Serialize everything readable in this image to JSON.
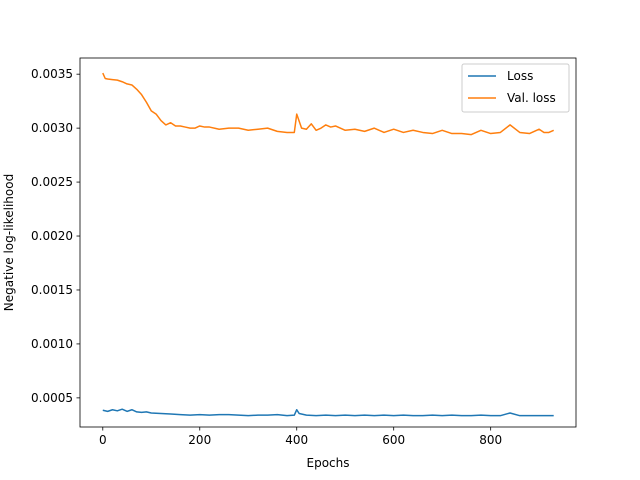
{
  "chart_data": {
    "type": "line",
    "title": "",
    "xlabel": "Epochs",
    "ylabel": "Negative log-likelihood",
    "xlim": [
      -47,
      976
    ],
    "ylim": [
      0.00023,
      0.00365
    ],
    "xticks": [
      0,
      200,
      400,
      600,
      800
    ],
    "xtick_labels": [
      "0",
      "200",
      "400",
      "600",
      "800"
    ],
    "yticks": [
      0.0005,
      0.001,
      0.0015,
      0.002,
      0.0025,
      0.003,
      0.0035
    ],
    "ytick_labels": [
      "0.0005",
      "0.0010",
      "0.0015",
      "0.0020",
      "0.0025",
      "0.0030",
      "0.0035"
    ],
    "grid": false,
    "legend_position": "top-right",
    "series": [
      {
        "name": "Loss",
        "color": "#1f77b4",
        "x": [
          0,
          10,
          20,
          30,
          40,
          50,
          60,
          70,
          80,
          90,
          100,
          120,
          140,
          160,
          180,
          200,
          220,
          240,
          260,
          280,
          300,
          320,
          340,
          360,
          380,
          395,
          400,
          405,
          420,
          440,
          460,
          480,
          500,
          520,
          540,
          560,
          580,
          600,
          620,
          640,
          660,
          680,
          700,
          720,
          740,
          760,
          780,
          800,
          820,
          840,
          860,
          880,
          900,
          920,
          930
        ],
        "y": [
          0.000385,
          0.000375,
          0.00039,
          0.00038,
          0.000395,
          0.000375,
          0.00039,
          0.00037,
          0.000365,
          0.00037,
          0.00036,
          0.000355,
          0.00035,
          0.000345,
          0.00034,
          0.000345,
          0.00034,
          0.000345,
          0.000345,
          0.00034,
          0.000335,
          0.00034,
          0.00034,
          0.000345,
          0.000335,
          0.00034,
          0.00039,
          0.000355,
          0.00034,
          0.000335,
          0.00034,
          0.000335,
          0.00034,
          0.000335,
          0.00034,
          0.000335,
          0.00034,
          0.000335,
          0.00034,
          0.000335,
          0.000335,
          0.00034,
          0.000335,
          0.00034,
          0.000335,
          0.000335,
          0.00034,
          0.000335,
          0.000335,
          0.00036,
          0.000335,
          0.000335,
          0.000335,
          0.000335,
          0.000335
        ]
      },
      {
        "name": "Val. loss",
        "color": "#ff7f0e",
        "x": [
          0,
          5,
          10,
          20,
          30,
          40,
          50,
          60,
          70,
          80,
          90,
          100,
          110,
          120,
          130,
          140,
          150,
          160,
          170,
          180,
          190,
          200,
          210,
          220,
          240,
          260,
          280,
          300,
          320,
          340,
          360,
          380,
          390,
          395,
          400,
          410,
          420,
          430,
          440,
          450,
          460,
          470,
          480,
          500,
          520,
          540,
          560,
          580,
          600,
          620,
          640,
          660,
          680,
          700,
          720,
          740,
          760,
          780,
          800,
          820,
          840,
          860,
          880,
          900,
          910,
          920,
          930
        ],
        "y": [
          0.00351,
          0.00346,
          0.003455,
          0.00345,
          0.003445,
          0.00343,
          0.00341,
          0.0034,
          0.00336,
          0.00331,
          0.00324,
          0.00316,
          0.00313,
          0.00307,
          0.00303,
          0.00305,
          0.00302,
          0.00302,
          0.00301,
          0.003,
          0.003,
          0.00302,
          0.00301,
          0.00301,
          0.00299,
          0.003,
          0.003,
          0.00298,
          0.00299,
          0.003,
          0.00297,
          0.00296,
          0.00296,
          0.00296,
          0.00313,
          0.003,
          0.00299,
          0.00304,
          0.00298,
          0.003,
          0.00303,
          0.00301,
          0.00302,
          0.00298,
          0.00299,
          0.00297,
          0.003,
          0.00296,
          0.00299,
          0.00296,
          0.00298,
          0.00296,
          0.00295,
          0.00298,
          0.00295,
          0.00295,
          0.00294,
          0.00298,
          0.00295,
          0.00296,
          0.00303,
          0.00296,
          0.00295,
          0.00299,
          0.00296,
          0.00296,
          0.00298
        ]
      }
    ]
  }
}
